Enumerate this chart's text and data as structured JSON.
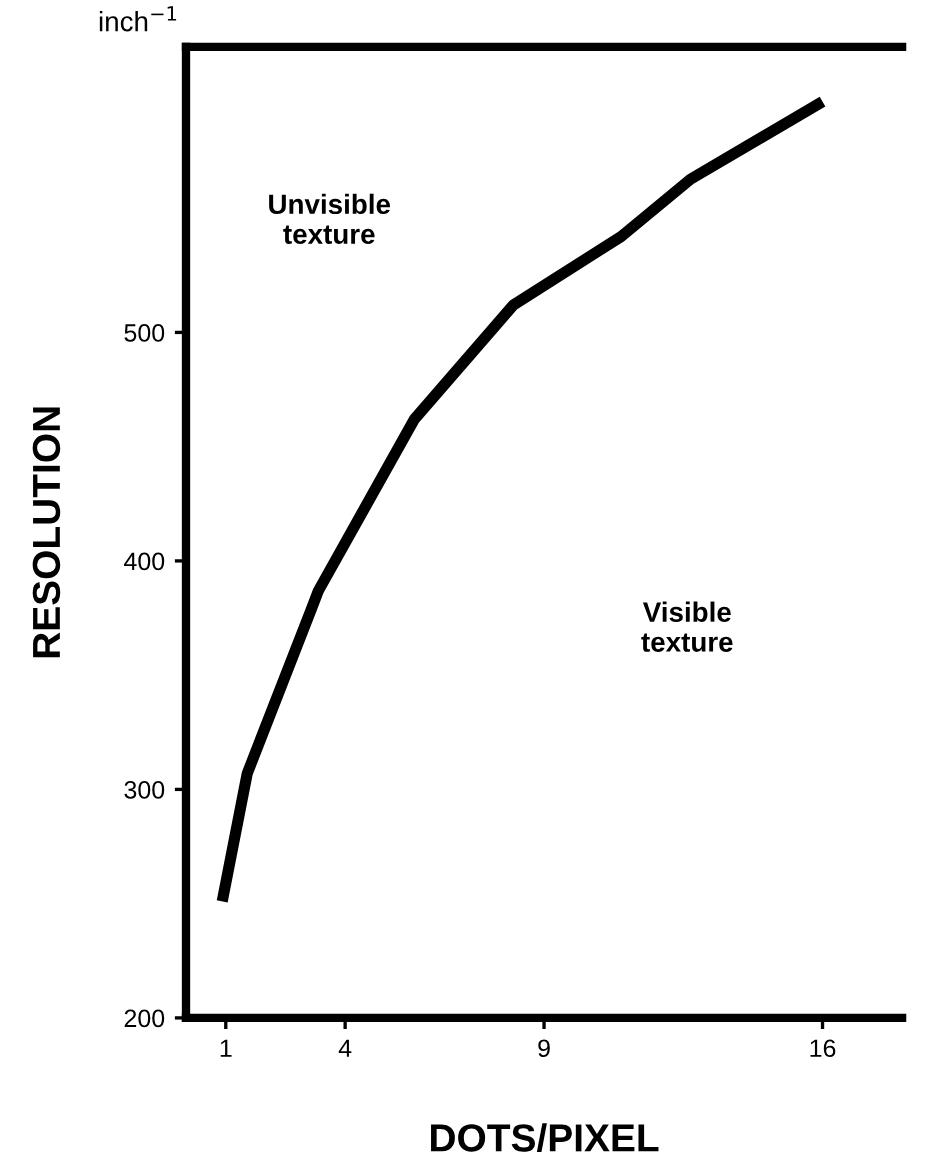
{
  "chart_data": {
    "type": "line",
    "xlabel": "DOTS/PIXEL",
    "ylabel": "RESOLUTION",
    "annotations": [
      "inch$^{−1}$",
      "Unvisible\ntexture",
      "Visible\ntexture"
    ],
    "x": [
      0.91,
      1.54,
      3.13,
      3.33,
      5.74,
      8.23,
      10.94,
      12.68,
      16
    ],
    "series": [
      {
        "color": "#000000",
        "values": [
          251,
          307,
          378,
          387,
          462,
          512,
          542,
          567,
          601
        ]
      }
    ],
    "xlim": [
      0,
      18
    ],
    "xticks": [
      1,
      4,
      9,
      16
    ],
    "ylim": [
      200,
      625
    ],
    "yticks": [
      200,
      300,
      400,
      500
    ],
    "grid": false,
    "marker": "none",
    "line_style": "solid"
  }
}
